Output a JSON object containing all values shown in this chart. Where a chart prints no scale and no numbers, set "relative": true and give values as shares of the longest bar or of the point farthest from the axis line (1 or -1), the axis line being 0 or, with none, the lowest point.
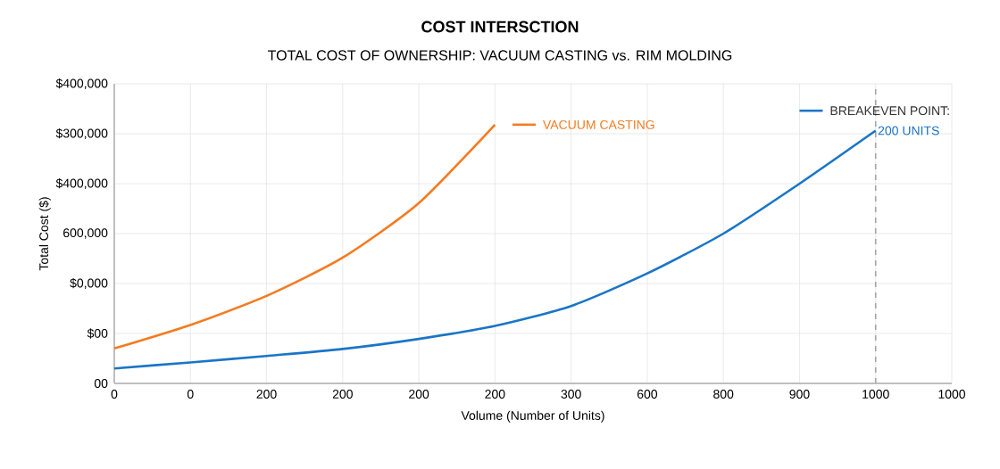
{
  "chart_data": {
    "type": "line",
    "title": "COST INTERSCTION",
    "subtitle": "TOTAL COST OF OWNERSHIP: VACUUM CASTING vs. RIM MOLDING",
    "xlabel": "Volume (Number of Units)",
    "ylabel": "Total Cost ($)",
    "categories": [
      "0",
      "0",
      "200",
      "200",
      "200",
      "200",
      "300",
      "600",
      "800",
      "900",
      "1000",
      "1000"
    ],
    "relative": true,
    "grid": true,
    "marker": "none",
    "line_style": "solid",
    "series": [
      {
        "name": "VACUUM CASTING",
        "color": "#f47b20",
        "values": [
          0.135,
          0.226,
          0.338,
          0.486,
          0.697,
          1.0,
          null,
          null,
          null,
          null,
          null,
          null
        ]
      },
      {
        "name": "BREAKEVEN POINT:",
        "color": "#1a75c7",
        "values": [
          0.058,
          0.081,
          0.106,
          0.133,
          0.172,
          0.222,
          0.299,
          0.425,
          0.579,
          0.772,
          0.977,
          null
        ]
      }
    ],
    "legend": "top right",
    "ref_lines": [
      {
        "axis": "x",
        "value": "1000",
        "color": "#a6a6a6",
        "line_style": "dashed"
      }
    ],
    "annotations": [
      "00",
      "$00",
      "$0,000",
      "600,000",
      "$400,000",
      "$300,000",
      "$400,000",
      {
        "text": "200 UNITS",
        "x": "1000",
        "y": 0.977
      }
    ]
  }
}
